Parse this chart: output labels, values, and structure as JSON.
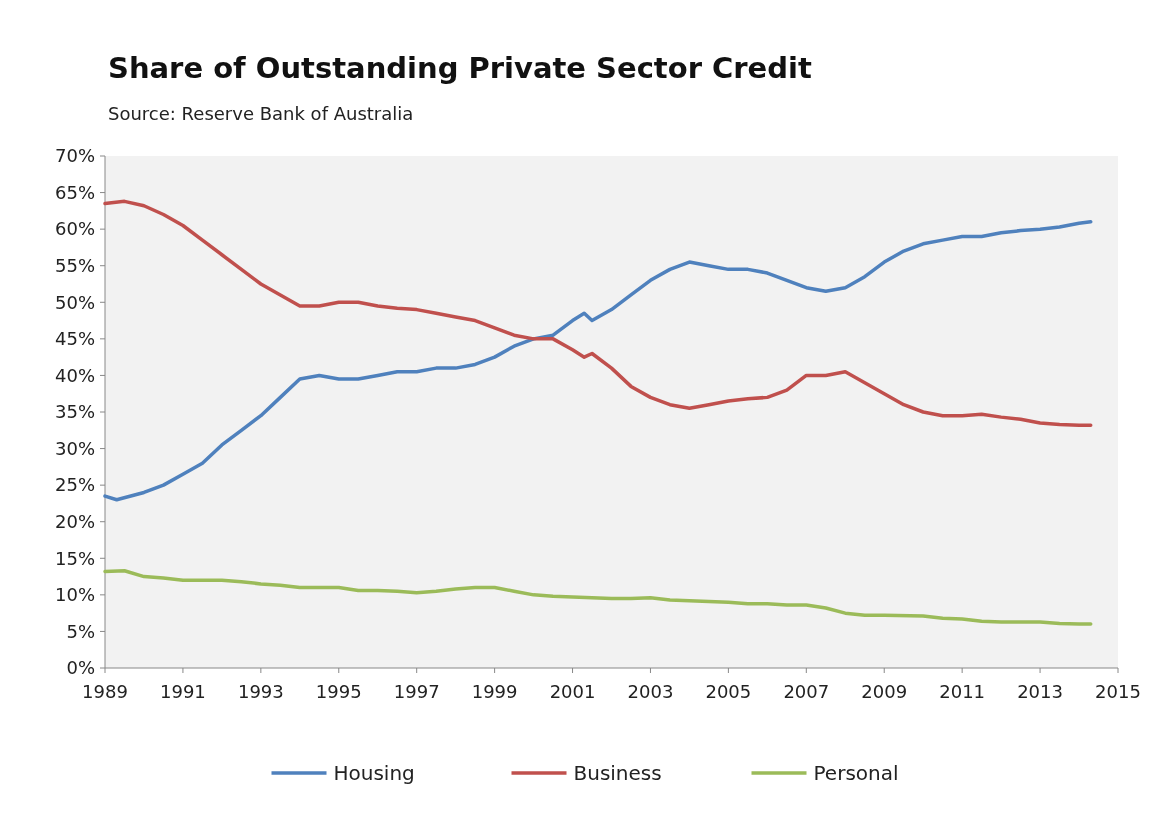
{
  "chart_data": {
    "type": "line",
    "title": "Share of Outstanding Private Sector Credit",
    "subtitle": "Source: Reserve Bank of Australia",
    "xlim": [
      1989,
      2015
    ],
    "xticks": [
      1989,
      1991,
      1993,
      1995,
      1997,
      1999,
      2001,
      2003,
      2005,
      2007,
      2009,
      2011,
      2013,
      2015
    ],
    "ylim": [
      0,
      70
    ],
    "yticks": [
      {
        "value": 0,
        "label": "0%"
      },
      {
        "value": 5,
        "label": "5%"
      },
      {
        "value": 10,
        "label": "10%"
      },
      {
        "value": 15,
        "label": "15%"
      },
      {
        "value": 20,
        "label": "20%"
      },
      {
        "value": 25,
        "label": "25%"
      },
      {
        "value": 30,
        "label": "30%"
      },
      {
        "value": 35,
        "label": "35%"
      },
      {
        "value": 40,
        "label": "40%"
      },
      {
        "value": 45,
        "label": "45%"
      },
      {
        "value": 50,
        "label": "50%"
      },
      {
        "value": 55,
        "label": "55%"
      },
      {
        "value": 60,
        "label": "60%"
      },
      {
        "value": 65,
        "label": "65%"
      },
      {
        "value": 70,
        "label": "70%"
      }
    ],
    "grid": false,
    "legend": "bottom",
    "marker": "none",
    "line_style": "solid",
    "series": [
      {
        "name": "Housing",
        "color": "#4f81bd",
        "x": [
          1989,
          1989.3,
          1990,
          1990.5,
          1991,
          1991.5,
          1992,
          1992.5,
          1993,
          1993.5,
          1994,
          1994.5,
          1995,
          1995.5,
          1996,
          1996.5,
          1997,
          1997.5,
          1998,
          1998.5,
          1999,
          1999.5,
          2000,
          2000.5,
          2001,
          2001.3,
          2001.5,
          2002,
          2002.5,
          2003,
          2003.5,
          2004,
          2004.5,
          2005,
          2005.5,
          2006,
          2006.5,
          2007,
          2007.5,
          2008,
          2008.5,
          2009,
          2009.5,
          2010,
          2010.5,
          2011,
          2011.5,
          2012,
          2012.5,
          2013,
          2013.5,
          2014,
          2014.3
        ],
        "values": [
          23.5,
          23,
          24,
          25,
          26.5,
          28,
          30.5,
          32.5,
          34.5,
          37,
          39.5,
          40,
          39.5,
          39.5,
          40,
          40.5,
          40.5,
          41,
          41,
          41.5,
          42.5,
          44,
          45,
          45.5,
          47.5,
          48.5,
          47.5,
          49,
          51,
          53,
          54.5,
          55.5,
          55,
          54.5,
          54.5,
          54,
          53,
          52,
          51.5,
          52,
          53.5,
          55.5,
          57,
          58,
          58.5,
          59,
          59,
          59.5,
          59.8,
          60,
          60.3,
          60.8,
          61
        ]
      },
      {
        "name": "Business",
        "color": "#c0504d",
        "x": [
          1989,
          1989.5,
          1990,
          1990.5,
          1991,
          1991.5,
          1992,
          1992.5,
          1993,
          1993.5,
          1994,
          1994.5,
          1995,
          1995.5,
          1996,
          1996.5,
          1997,
          1997.5,
          1998,
          1998.5,
          1999,
          1999.5,
          2000,
          2000.5,
          2001,
          2001.3,
          2001.5,
          2002,
          2002.5,
          2003,
          2003.5,
          2004,
          2004.5,
          2005,
          2005.5,
          2006,
          2006.5,
          2007,
          2007.5,
          2008,
          2008.5,
          2009,
          2009.5,
          2010,
          2010.5,
          2011,
          2011.5,
          2012,
          2012.5,
          2013,
          2013.5,
          2014,
          2014.3
        ],
        "values": [
          63.5,
          63.8,
          63.2,
          62,
          60.5,
          58.5,
          56.5,
          54.5,
          52.5,
          51,
          49.5,
          49.5,
          50,
          50,
          49.5,
          49.2,
          49,
          48.5,
          48,
          47.5,
          46.5,
          45.5,
          45,
          45,
          43.5,
          42.5,
          43,
          41,
          38.5,
          37,
          36,
          35.5,
          36,
          36.5,
          36.8,
          37,
          38,
          40,
          40,
          40.5,
          39,
          37.5,
          36,
          35,
          34.5,
          34.5,
          34.7,
          34.3,
          34,
          33.5,
          33.3,
          33.2,
          33.2
        ]
      },
      {
        "name": "Personal",
        "color": "#9bbb59",
        "x": [
          1989,
          1989.5,
          1990,
          1990.5,
          1991,
          1992,
          1992.5,
          1993,
          1993.5,
          1994,
          1994.5,
          1995,
          1995.5,
          1996,
          1996.5,
          1997,
          1997.5,
          1998,
          1998.5,
          1999,
          1999.5,
          2000,
          2000.5,
          2001,
          2002,
          2002.5,
          2003,
          2003.5,
          2004,
          2005,
          2005.5,
          2006,
          2006.5,
          2007,
          2007.5,
          2008,
          2008.5,
          2009,
          2010,
          2010.5,
          2011,
          2011.5,
          2012,
          2012.5,
          2013,
          2013.5,
          2014,
          2014.3
        ],
        "values": [
          13.2,
          13.3,
          12.5,
          12.3,
          12,
          12,
          11.8,
          11.5,
          11.3,
          11,
          11,
          11,
          10.6,
          10.6,
          10.5,
          10.3,
          10.5,
          10.8,
          11,
          11,
          10.5,
          10,
          9.8,
          9.7,
          9.5,
          9.5,
          9.6,
          9.3,
          9.2,
          9,
          8.8,
          8.8,
          8.6,
          8.6,
          8.2,
          7.5,
          7.2,
          7.2,
          7.1,
          6.8,
          6.7,
          6.4,
          6.3,
          6.3,
          6.3,
          6.1,
          6,
          6
        ]
      }
    ]
  }
}
